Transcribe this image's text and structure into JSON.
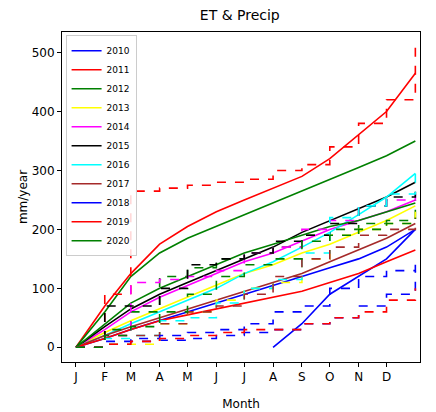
{
  "chart_data": {
    "type": "line",
    "title": "ET & Precip",
    "x_label": "Month",
    "y_label": "mm/year",
    "x": [
      0,
      31,
      59,
      90,
      120,
      151,
      181,
      212,
      243,
      273,
      304,
      334,
      365
    ],
    "xlim": [
      -15,
      370
    ],
    "xticks": [
      {
        "value": 0,
        "label": "J"
      },
      {
        "value": 31,
        "label": "F"
      },
      {
        "value": 59,
        "label": "M"
      },
      {
        "value": 90,
        "label": "A"
      },
      {
        "value": 120,
        "label": "M"
      },
      {
        "value": 151,
        "label": "J"
      },
      {
        "value": 181,
        "label": "J"
      },
      {
        "value": 212,
        "label": "A"
      },
      {
        "value": 243,
        "label": "S"
      },
      {
        "value": 273,
        "label": "O"
      },
      {
        "value": 304,
        "label": "N"
      },
      {
        "value": 334,
        "label": "D"
      }
    ],
    "ylim": [
      -25,
      535
    ],
    "yticks": [
      0,
      100,
      200,
      300,
      400,
      500
    ],
    "grid": false,
    "legend": "upper left",
    "series": [
      {
        "name": "2010",
        "color": "blue",
        "line_style": "solid",
        "values": [
          0,
          15,
          30,
          45,
          60,
          75,
          90,
          105,
          120,
          135,
          150,
          170,
          200
        ]
      },
      {
        "name": "2011",
        "color": "red",
        "line_style": "solid",
        "values": [
          0,
          70,
          125,
          175,
          205,
          230,
          250,
          270,
          290,
          320,
          360,
          400,
          465
        ]
      },
      {
        "name": "2012",
        "color": "green",
        "line_style": "solid",
        "values": [
          0,
          60,
          120,
          160,
          185,
          205,
          225,
          245,
          265,
          285,
          305,
          325,
          350
        ]
      },
      {
        "name": "2013",
        "color": "yellow",
        "line_style": "solid",
        "values": [
          0,
          25,
          45,
          65,
          85,
          105,
          125,
          140,
          160,
          175,
          195,
          215,
          240
        ]
      },
      {
        "name": "2014",
        "color": "magenta",
        "line_style": "solid",
        "values": [
          0,
          30,
          60,
          85,
          105,
          125,
          145,
          160,
          180,
          200,
          215,
          230,
          250
        ]
      },
      {
        "name": "2015",
        "color": "black",
        "line_style": "solid",
        "values": [
          0,
          35,
          65,
          90,
          110,
          130,
          150,
          170,
          195,
          215,
          235,
          255,
          280
        ]
      },
      {
        "name": "2016",
        "color": "cyan",
        "line_style": "solid",
        "values": [
          0,
          20,
          40,
          60,
          80,
          100,
          125,
          145,
          170,
          195,
          225,
          255,
          295
        ]
      },
      {
        "name": "2017",
        "color": "brown",
        "line_style": "solid",
        "values": [
          0,
          20,
          35,
          50,
          65,
          80,
          95,
          110,
          125,
          145,
          165,
          185,
          210
        ]
      },
      {
        "name": "2018",
        "color": "blue",
        "line_style": "solid",
        "values": [
          null,
          null,
          null,
          null,
          null,
          null,
          null,
          0,
          40,
          90,
          120,
          150,
          200
        ]
      },
      {
        "name": "2019",
        "color": "red",
        "line_style": "solid",
        "values": [
          0,
          15,
          30,
          45,
          55,
          65,
          75,
          85,
          95,
          110,
          125,
          145,
          165
        ]
      },
      {
        "name": "2020",
        "color": "green",
        "line_style": "solid",
        "values": [
          0,
          40,
          75,
          100,
          120,
          140,
          160,
          175,
          190,
          205,
          215,
          230,
          245
        ]
      },
      {
        "color": "blue",
        "line_style": "dashed",
        "values": [
          0,
          5,
          10,
          12,
          15,
          20,
          25,
          30,
          40,
          50,
          70,
          90,
          130
        ]
      },
      {
        "color": "red",
        "line_style": "dashed",
        "values": [
          0,
          90,
          265,
          270,
          275,
          280,
          285,
          300,
          310,
          340,
          380,
          420,
          510
        ]
      },
      {
        "color": "green",
        "line_style": "dashed",
        "values": [
          0,
          30,
          60,
          120,
          135,
          150,
          160,
          170,
          190,
          200,
          210,
          215,
          250
        ]
      },
      {
        "color": "yellow",
        "line_style": "dashed",
        "values": [
          0,
          5,
          5,
          40,
          60,
          80,
          100,
          110,
          150,
          190,
          200,
          210,
          230
        ]
      },
      {
        "color": "magenta",
        "line_style": "dashed",
        "values": [
          0,
          20,
          110,
          115,
          120,
          130,
          160,
          170,
          200,
          215,
          240,
          250,
          260
        ]
      },
      {
        "color": "black",
        "line_style": "dashed",
        "values": [
          0,
          70,
          70,
          100,
          140,
          150,
          160,
          180,
          190,
          210,
          240,
          255,
          270
        ]
      },
      {
        "color": "cyan",
        "line_style": "dashed",
        "values": [
          0,
          15,
          20,
          45,
          50,
          75,
          100,
          115,
          160,
          220,
          240,
          260,
          300
        ]
      },
      {
        "color": "brown",
        "line_style": "dashed",
        "values": [
          0,
          20,
          20,
          40,
          60,
          70,
          90,
          120,
          150,
          170,
          190,
          200,
          220
        ]
      },
      {
        "color": "blue",
        "line_style": "dashed",
        "values": [
          0,
          10,
          15,
          20,
          25,
          30,
          40,
          60,
          70,
          100,
          120,
          130,
          140
        ]
      },
      {
        "color": "red",
        "line_style": "dashed",
        "values": [
          0,
          5,
          10,
          15,
          20,
          25,
          30,
          30,
          40,
          50,
          60,
          80,
          100
        ]
      },
      {
        "color": "green",
        "line_style": "dashed",
        "values": [
          0,
          20,
          35,
          60,
          90,
          120,
          140,
          150,
          180,
          190,
          200,
          210,
          220
        ]
      }
    ]
  }
}
